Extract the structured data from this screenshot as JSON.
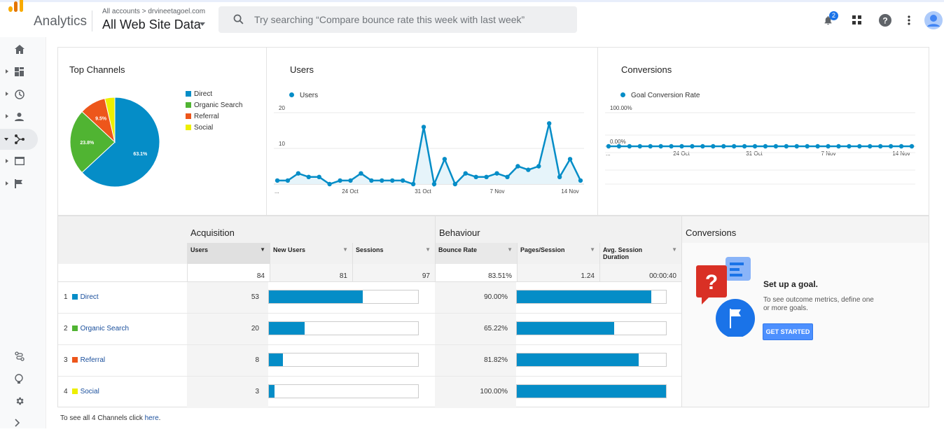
{
  "header": {
    "app_name": "Analytics",
    "breadcrumb": "All accounts > drvineetagoel.com",
    "view_name": "All Web Site Data",
    "search_placeholder": "Try searching “Compare bounce rate this week with last week”",
    "notification_count": "2"
  },
  "nav": {
    "items": [
      "home-icon",
      "customization-icon",
      "realtime-icon",
      "audience-icon",
      "acquisition-icon",
      "behaviour-icon",
      "conversions-icon"
    ],
    "active": "acquisition-icon",
    "bottom": [
      "attribution-icon",
      "discover-icon",
      "admin-icon",
      "expand-icon"
    ]
  },
  "top_channels": {
    "title": "Top Channels",
    "slices": [
      {
        "name": "Direct",
        "value": 63.1,
        "label": "63.1%",
        "color": "#058dc7"
      },
      {
        "name": "Organic Search",
        "value": 23.8,
        "label": "23.8%",
        "color": "#50b432"
      },
      {
        "name": "Referral",
        "value": 9.5,
        "label": "9.5%",
        "color": "#ed561b"
      },
      {
        "name": "Social",
        "value": 3.6,
        "label": "",
        "color": "#edef00"
      }
    ]
  },
  "users_chart": {
    "title": "Users",
    "legend": "Users",
    "y_ticks": [
      "20",
      "10"
    ],
    "x_ticks": [
      "...",
      "24 Oct",
      "31 Oct",
      "7 Nov",
      "14 Nov"
    ]
  },
  "conversions_chart": {
    "title": "Conversions",
    "legend": "Goal Conversion Rate",
    "y_ticks": [
      "100.00%",
      "0.00%"
    ],
    "x_ticks": [
      "...",
      "24 Oct",
      "31 Oct",
      "7 Nov",
      "14 Nov"
    ]
  },
  "chart_data": [
    {
      "type": "pie",
      "title": "Top Channels",
      "categories": [
        "Direct",
        "Organic Search",
        "Referral",
        "Social"
      ],
      "values": [
        63.1,
        23.8,
        9.5,
        3.6
      ]
    },
    {
      "type": "area",
      "title": "Users",
      "series": [
        {
          "name": "Users",
          "values": [
            1,
            1,
            3,
            2,
            2,
            0,
            1,
            1,
            3,
            1,
            1,
            1,
            1,
            0,
            16,
            0,
            7,
            0,
            3,
            2,
            2,
            3,
            2,
            5,
            4,
            5,
            17,
            2,
            7,
            1
          ]
        }
      ],
      "ylim": [
        0,
        20
      ]
    },
    {
      "type": "line",
      "title": "Conversions",
      "series": [
        {
          "name": "Goal Conversion Rate",
          "values": [
            0,
            0,
            0,
            0,
            0,
            0,
            0,
            0,
            0,
            0,
            0,
            0,
            0,
            0,
            0,
            0,
            0,
            0,
            0,
            0,
            0,
            0,
            0,
            0,
            0,
            0,
            0,
            0,
            0,
            0
          ]
        }
      ],
      "ylim": [
        0,
        100
      ]
    }
  ],
  "table": {
    "group_acquisition": "Acquisition",
    "group_behaviour": "Behaviour",
    "columns": [
      "Users",
      "New Users",
      "Sessions",
      "Bounce Rate",
      "Pages/Session",
      "Avg. Session Duration"
    ],
    "totals": [
      "84",
      "81",
      "97",
      "83.51%",
      "1.24",
      "00:00:40"
    ],
    "rows": [
      {
        "num": "1",
        "name": "Direct",
        "color": "#058dc7",
        "users": "53",
        "users_frac": 0.63,
        "bounce": "90.00%",
        "bounce_frac": 0.9
      },
      {
        "num": "2",
        "name": "Organic Search",
        "color": "#50b432",
        "users": "20",
        "users_frac": 0.238,
        "bounce": "65.22%",
        "bounce_frac": 0.6522
      },
      {
        "num": "3",
        "name": "Referral",
        "color": "#ed561b",
        "users": "8",
        "users_frac": 0.095,
        "bounce": "81.82%",
        "bounce_frac": 0.8182
      },
      {
        "num": "4",
        "name": "Social",
        "color": "#edef00",
        "users": "3",
        "users_frac": 0.036,
        "bounce": "100.00%",
        "bounce_frac": 1.0
      }
    ]
  },
  "goal": {
    "title": "Conversions",
    "heading": "Set up a goal.",
    "text": "To see outcome metrics, define one or more goals.",
    "button": "GET STARTED"
  },
  "footer": {
    "text": "To see all 4 Channels click ",
    "link": "here",
    "end": "."
  }
}
